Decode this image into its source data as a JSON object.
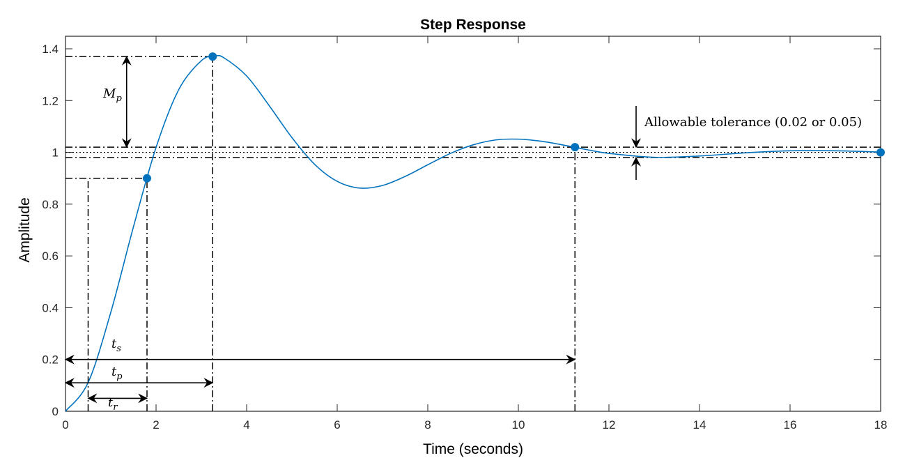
{
  "chart_data": {
    "type": "line",
    "title": "Step Response",
    "xlabel": "Time (seconds)",
    "ylabel": "Amplitude",
    "xlim": [
      0,
      18
    ],
    "ylim": [
      0,
      1.4
    ],
    "xticks": [
      "0",
      "2",
      "4",
      "6",
      "8",
      "10",
      "12",
      "14",
      "16",
      "18"
    ],
    "yticks": [
      "0",
      "0.2",
      "0.4",
      "0.6",
      "0.8",
      "1",
      "1.2",
      "1.4"
    ],
    "grid": false,
    "line_color": "#0072BD",
    "series": [
      {
        "x": [
          0,
          0.5,
          1,
          1.5,
          2,
          2.5,
          3,
          3.3,
          3.5,
          4,
          4.5,
          5,
          5.5,
          6,
          6.5,
          7,
          7.5,
          8,
          8.5,
          9,
          9.5,
          10,
          10.5,
          11,
          11.5,
          12,
          13,
          14,
          15,
          16,
          17,
          18
        ],
        "y": [
          0,
          0.111,
          0.382,
          0.712,
          1.019,
          1.242,
          1.354,
          1.372,
          1.365,
          1.295,
          1.18,
          1.057,
          0.954,
          0.888,
          0.862,
          0.872,
          0.907,
          0.952,
          0.996,
          1.029,
          1.048,
          1.051,
          1.043,
          1.028,
          1.011,
          0.996,
          0.981,
          0.986,
          0.998,
          1.006,
          1.006,
          1.001
        ]
      }
    ],
    "markers": [
      {
        "x": 1.8,
        "y": 0.9
      },
      {
        "x": 3.25,
        "y": 1.37
      },
      {
        "x": 11.25,
        "y": 1.02
      },
      {
        "x": 18,
        "y": 1.0
      }
    ],
    "reference_lines": {
      "rise_start_t": 0.5,
      "rise_level": 0.9,
      "rise_end_t": 1.8,
      "peak_t": 3.25,
      "peak_level": 1.37,
      "settle_t": 11.25,
      "tolerance_upper": 1.02,
      "tolerance_lower": 0.98,
      "final_value": 1.0
    },
    "annotations": {
      "Mp": {
        "base": "M",
        "sub": "p"
      },
      "ts": {
        "base": "t",
        "sub": "s"
      },
      "tp": {
        "base": "t",
        "sub": "p"
      },
      "tr": {
        "base": "t",
        "sub": "r"
      },
      "tolerance": "Allowable tolerance (0.02 or 0.05)"
    }
  }
}
